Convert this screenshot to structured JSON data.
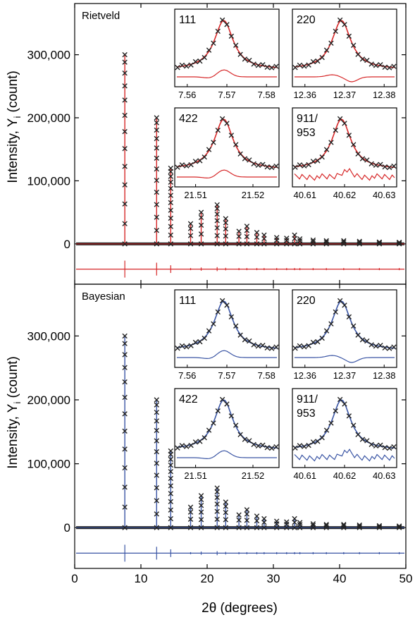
{
  "figure": {
    "xlabel": "2θ (degrees)",
    "ylabel_main": "Intensity, Y",
    "ylabel_sub": "i",
    "ylabel_tail": " (count)"
  },
  "colors": {
    "rietveld": "#d62728",
    "bayesian": "#3a55a4",
    "obs": "#222222"
  },
  "chart_data": [
    {
      "type": "scatter",
      "title": "Rietveld",
      "fit_color": "#d62728",
      "x_ticks": [
        0,
        10,
        20,
        30,
        40,
        50
      ],
      "x_tick_labels": [
        "0",
        "10",
        "20",
        "30",
        "40",
        "50"
      ],
      "y_ticks": [
        0,
        100000,
        200000,
        300000
      ],
      "y_tick_labels": [
        "0",
        "100,000",
        "200,000",
        "300,000"
      ],
      "xlim": [
        0,
        50
      ],
      "ylim": [
        -55000,
        370000
      ],
      "difference_offset": -40000,
      "peaks": [
        {
          "x": 7.57,
          "y": 300000
        },
        {
          "x": 12.37,
          "y": 200000
        },
        {
          "x": 14.5,
          "y": 120000
        },
        {
          "x": 17.5,
          "y": 32000
        },
        {
          "x": 19.1,
          "y": 50000
        },
        {
          "x": 21.51,
          "y": 62000
        },
        {
          "x": 22.8,
          "y": 40000
        },
        {
          "x": 24.8,
          "y": 20000
        },
        {
          "x": 26.0,
          "y": 28000
        },
        {
          "x": 27.5,
          "y": 18000
        },
        {
          "x": 28.6,
          "y": 14000
        },
        {
          "x": 30.5,
          "y": 10000
        },
        {
          "x": 32.0,
          "y": 9000
        },
        {
          "x": 33.2,
          "y": 14000
        },
        {
          "x": 34.0,
          "y": 8000
        },
        {
          "x": 36.0,
          "y": 6000
        },
        {
          "x": 38.0,
          "y": 5000
        },
        {
          "x": 40.62,
          "y": 5000
        },
        {
          "x": 43.0,
          "y": 4000
        },
        {
          "x": 46.0,
          "y": 3000
        },
        {
          "x": 49.0,
          "y": 2500
        }
      ],
      "insets": [
        {
          "label": [
            "111"
          ],
          "ticks": [
            "7.56",
            "7.57",
            "7.58"
          ],
          "residual": "bump"
        },
        {
          "label": [
            "220"
          ],
          "ticks": [
            "12.36",
            "12.37",
            "12.38"
          ],
          "residual": "dip"
        },
        {
          "label": [
            "422"
          ],
          "ticks": [
            "21.51",
            "21.52"
          ],
          "residual": "bump"
        },
        {
          "label": [
            "911/",
            "953"
          ],
          "ticks": [
            "40.61",
            "40.62",
            "40.63"
          ],
          "residual": "noisy"
        }
      ]
    },
    {
      "type": "scatter",
      "title": "Bayesian",
      "fit_color": "#3a55a4",
      "x_ticks": [
        0,
        10,
        20,
        30,
        40,
        50
      ],
      "x_tick_labels": [
        "0",
        "10",
        "20",
        "30",
        "40",
        "50"
      ],
      "y_ticks": [
        0,
        100000,
        200000,
        300000
      ],
      "y_tick_labels": [
        "0",
        "100,000",
        "200,000",
        "300,000"
      ],
      "xlim": [
        0,
        50
      ],
      "ylim": [
        -55000,
        370000
      ],
      "difference_offset": -40000,
      "peaks": [
        {
          "x": 7.57,
          "y": 300000
        },
        {
          "x": 12.37,
          "y": 200000
        },
        {
          "x": 14.5,
          "y": 120000
        },
        {
          "x": 17.5,
          "y": 32000
        },
        {
          "x": 19.1,
          "y": 50000
        },
        {
          "x": 21.51,
          "y": 62000
        },
        {
          "x": 22.8,
          "y": 40000
        },
        {
          "x": 24.8,
          "y": 20000
        },
        {
          "x": 26.0,
          "y": 28000
        },
        {
          "x": 27.5,
          "y": 18000
        },
        {
          "x": 28.6,
          "y": 14000
        },
        {
          "x": 30.5,
          "y": 10000
        },
        {
          "x": 32.0,
          "y": 9000
        },
        {
          "x": 33.2,
          "y": 14000
        },
        {
          "x": 34.0,
          "y": 8000
        },
        {
          "x": 36.0,
          "y": 6000
        },
        {
          "x": 38.0,
          "y": 5000
        },
        {
          "x": 40.62,
          "y": 5000
        },
        {
          "x": 43.0,
          "y": 4000
        },
        {
          "x": 46.0,
          "y": 3000
        },
        {
          "x": 49.0,
          "y": 2500
        }
      ],
      "insets": [
        {
          "label": [
            "111"
          ],
          "ticks": [
            "7.56",
            "7.57",
            "7.58"
          ],
          "residual": "bump"
        },
        {
          "label": [
            "220"
          ],
          "ticks": [
            "12.36",
            "12.37",
            "12.38"
          ],
          "residual": "dip"
        },
        {
          "label": [
            "422"
          ],
          "ticks": [
            "21.51",
            "21.52"
          ],
          "residual": "bump"
        },
        {
          "label": [
            "911/",
            "953"
          ],
          "ticks": [
            "40.61",
            "40.62",
            "40.63"
          ],
          "residual": "noisy"
        }
      ]
    }
  ]
}
